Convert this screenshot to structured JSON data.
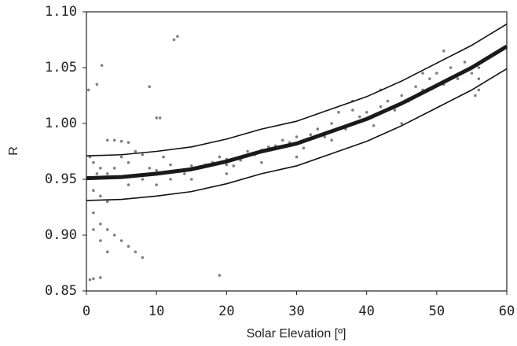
{
  "chart_data": {
    "type": "scatter",
    "x_label": "Solar Elevation [º]",
    "y_label": "R",
    "xlim": [
      0,
      60
    ],
    "xticks": [
      0,
      10,
      20,
      30,
      40,
      50,
      60
    ],
    "ylim": [
      0.85,
      1.1
    ],
    "yticks": [
      0.85,
      {
        "value": 0.9,
        "label": "0.90"
      },
      0.95,
      {
        "value": 1.0,
        "label": "1.00"
      },
      1.05,
      {
        "value": 1.1,
        "label": "1.10"
      }
    ],
    "scatter": {
      "color": "#808080",
      "x": [
        0.5,
        1,
        2,
        0.3,
        1.5,
        2.2,
        3,
        4,
        5,
        6,
        0.5,
        1,
        2,
        3,
        1,
        2,
        3,
        1,
        2,
        3,
        4,
        5,
        6,
        7,
        8,
        1,
        2,
        3,
        1.5,
        4,
        5,
        6,
        7,
        8,
        9,
        10,
        9,
        10,
        10.5,
        12.5,
        13,
        11,
        12,
        13,
        14,
        15,
        16,
        17,
        18,
        19,
        20,
        19,
        20,
        21,
        22,
        23,
        24,
        25,
        26,
        27,
        28,
        29,
        30,
        31,
        32,
        33,
        34,
        35,
        36,
        37,
        38,
        39,
        40,
        41,
        42,
        43,
        44,
        45,
        46,
        47,
        48,
        49,
        50,
        51,
        51,
        52,
        53,
        54,
        55,
        56,
        56,
        56,
        55.5,
        30,
        25,
        35,
        45,
        15,
        10,
        8,
        6,
        12,
        20,
        38,
        42,
        48
      ],
      "y": [
        0.86,
        0.861,
        0.862,
        1.03,
        1.035,
        1.052,
        0.985,
        0.985,
        0.984,
        0.983,
        0.97,
        0.965,
        0.96,
        0.955,
        0.94,
        0.935,
        0.93,
        0.92,
        0.91,
        0.905,
        0.9,
        0.895,
        0.89,
        0.885,
        0.88,
        0.905,
        0.895,
        0.885,
        0.955,
        0.96,
        0.97,
        0.965,
        0.975,
        0.972,
        0.96,
        0.958,
        1.033,
        1.005,
        1.005,
        1.075,
        1.078,
        0.97,
        0.963,
        0.958,
        0.955,
        0.962,
        0.96,
        0.963,
        0.965,
        0.97,
        0.968,
        0.864,
        0.963,
        0.962,
        0.967,
        0.975,
        0.972,
        0.976,
        0.979,
        0.98,
        0.985,
        0.983,
        0.988,
        0.978,
        0.99,
        0.995,
        0.988,
        1.0,
        1.01,
        0.995,
        1.012,
        1.006,
        1.01,
        0.998,
        1.015,
        1.02,
        1.012,
        1.025,
        1.02,
        1.033,
        1.03,
        1.04,
        1.045,
        1.065,
        1.035,
        1.05,
        1.04,
        1.055,
        1.045,
        1.04,
        1.03,
        1.05,
        1.025,
        0.97,
        0.965,
        0.985,
        1.0,
        0.95,
        0.945,
        0.95,
        0.945,
        0.95,
        0.955,
        1.02,
        1.03,
        1.045
      ]
    },
    "lines": [
      {
        "color": "#1a1a1a",
        "width": 5,
        "x": [
          0,
          5,
          10,
          15,
          20,
          25,
          30,
          35,
          40,
          45,
          50,
          55,
          60
        ],
        "values": [
          0.951,
          0.952,
          0.955,
          0.959,
          0.966,
          0.975,
          0.982,
          0.993,
          1.004,
          1.018,
          1.034,
          1.05,
          1.069
        ]
      },
      {
        "color": "#111111",
        "width": 1.6,
        "x": [
          0,
          5,
          10,
          15,
          20,
          25,
          30,
          35,
          40,
          45,
          50,
          55,
          60
        ],
        "values": [
          0.971,
          0.972,
          0.975,
          0.979,
          0.986,
          0.995,
          1.002,
          1.013,
          1.024,
          1.038,
          1.054,
          1.07,
          1.089
        ]
      },
      {
        "color": "#111111",
        "width": 1.6,
        "x": [
          0,
          5,
          10,
          15,
          20,
          25,
          30,
          35,
          40,
          45,
          50,
          55,
          60
        ],
        "values": [
          0.931,
          0.932,
          0.935,
          0.939,
          0.946,
          0.955,
          0.962,
          0.973,
          0.984,
          0.998,
          1.014,
          1.03,
          1.049
        ]
      }
    ]
  }
}
